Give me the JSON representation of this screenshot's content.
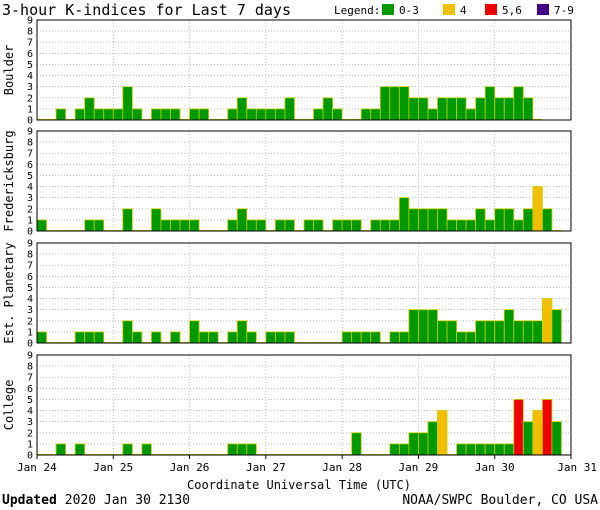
{
  "chart_data": {
    "type": "bar",
    "title": "3-hour K-indices for Last 7 days",
    "xlabel": "Coordinate Universal Time (UTC)",
    "x_ticks": [
      "Jan 24",
      "Jan 25",
      "Jan 26",
      "Jan 27",
      "Jan 28",
      "Jan 29",
      "Jan 30",
      "Jan 31"
    ],
    "y_ticks": [
      "0",
      "1",
      "2",
      "3",
      "4",
      "5",
      "6",
      "7",
      "8",
      "9"
    ],
    "ylim": [
      0,
      9
    ],
    "intervals_per_day": 8,
    "legend": {
      "label": "Legend:",
      "placement": "top-right",
      "entries": [
        {
          "label": "0-3",
          "color": "#009900"
        },
        {
          "label": "4",
          "color": "#f0c000"
        },
        {
          "label": "5,6",
          "color": "#ee0000"
        },
        {
          "label": "7-9",
          "color": "#440088"
        }
      ]
    },
    "outline_color": "#cccc00",
    "series": [
      {
        "name": "Boulder",
        "values": [
          0,
          0,
          1,
          0,
          1,
          2,
          1,
          1,
          1,
          3,
          1,
          0,
          1,
          1,
          1,
          0,
          1,
          1,
          0,
          0,
          1,
          2,
          1,
          1,
          1,
          1,
          2,
          0,
          0,
          1,
          2,
          1,
          0,
          0,
          1,
          1,
          3,
          3,
          3,
          2,
          2,
          1,
          2,
          2,
          2,
          1,
          2,
          3,
          2,
          2,
          3,
          2,
          0
        ]
      },
      {
        "name": "Fredericksburg",
        "values": [
          1,
          0,
          0,
          0,
          0,
          1,
          1,
          0,
          0,
          2,
          0,
          0,
          2,
          1,
          1,
          1,
          1,
          0,
          0,
          0,
          1,
          2,
          1,
          1,
          0,
          1,
          1,
          0,
          1,
          1,
          0,
          1,
          1,
          1,
          0,
          1,
          1,
          1,
          3,
          2,
          2,
          2,
          2,
          1,
          1,
          1,
          2,
          1,
          2,
          2,
          1,
          2,
          4,
          2,
          0
        ]
      },
      {
        "name": "Est. Planetary",
        "values": [
          1,
          0,
          0,
          0,
          1,
          1,
          1,
          0,
          0,
          2,
          1,
          0,
          1,
          0,
          1,
          0,
          2,
          1,
          1,
          0,
          1,
          2,
          1,
          0,
          1,
          1,
          1,
          0,
          0,
          0,
          0,
          0,
          1,
          1,
          1,
          1,
          0,
          1,
          1,
          3,
          3,
          3,
          2,
          2,
          1,
          1,
          2,
          2,
          2,
          3,
          2,
          2,
          2,
          4,
          3
        ]
      },
      {
        "name": "College",
        "values": [
          0,
          0,
          1,
          0,
          1,
          0,
          0,
          0,
          0,
          1,
          0,
          1,
          0,
          0,
          0,
          0,
          0,
          0,
          0,
          0,
          1,
          1,
          1,
          0,
          0,
          0,
          0,
          0,
          0,
          0,
          0,
          0,
          0,
          2,
          0,
          0,
          0,
          1,
          1,
          2,
          2,
          3,
          4,
          0,
          1,
          1,
          1,
          1,
          1,
          1,
          5,
          3,
          4,
          5,
          3
        ]
      }
    ]
  },
  "footer": {
    "updated_label": "Updated",
    "updated_value": "2020 Jan 30 2130",
    "credit": "NOAA/SWPC Boulder, CO USA"
  }
}
